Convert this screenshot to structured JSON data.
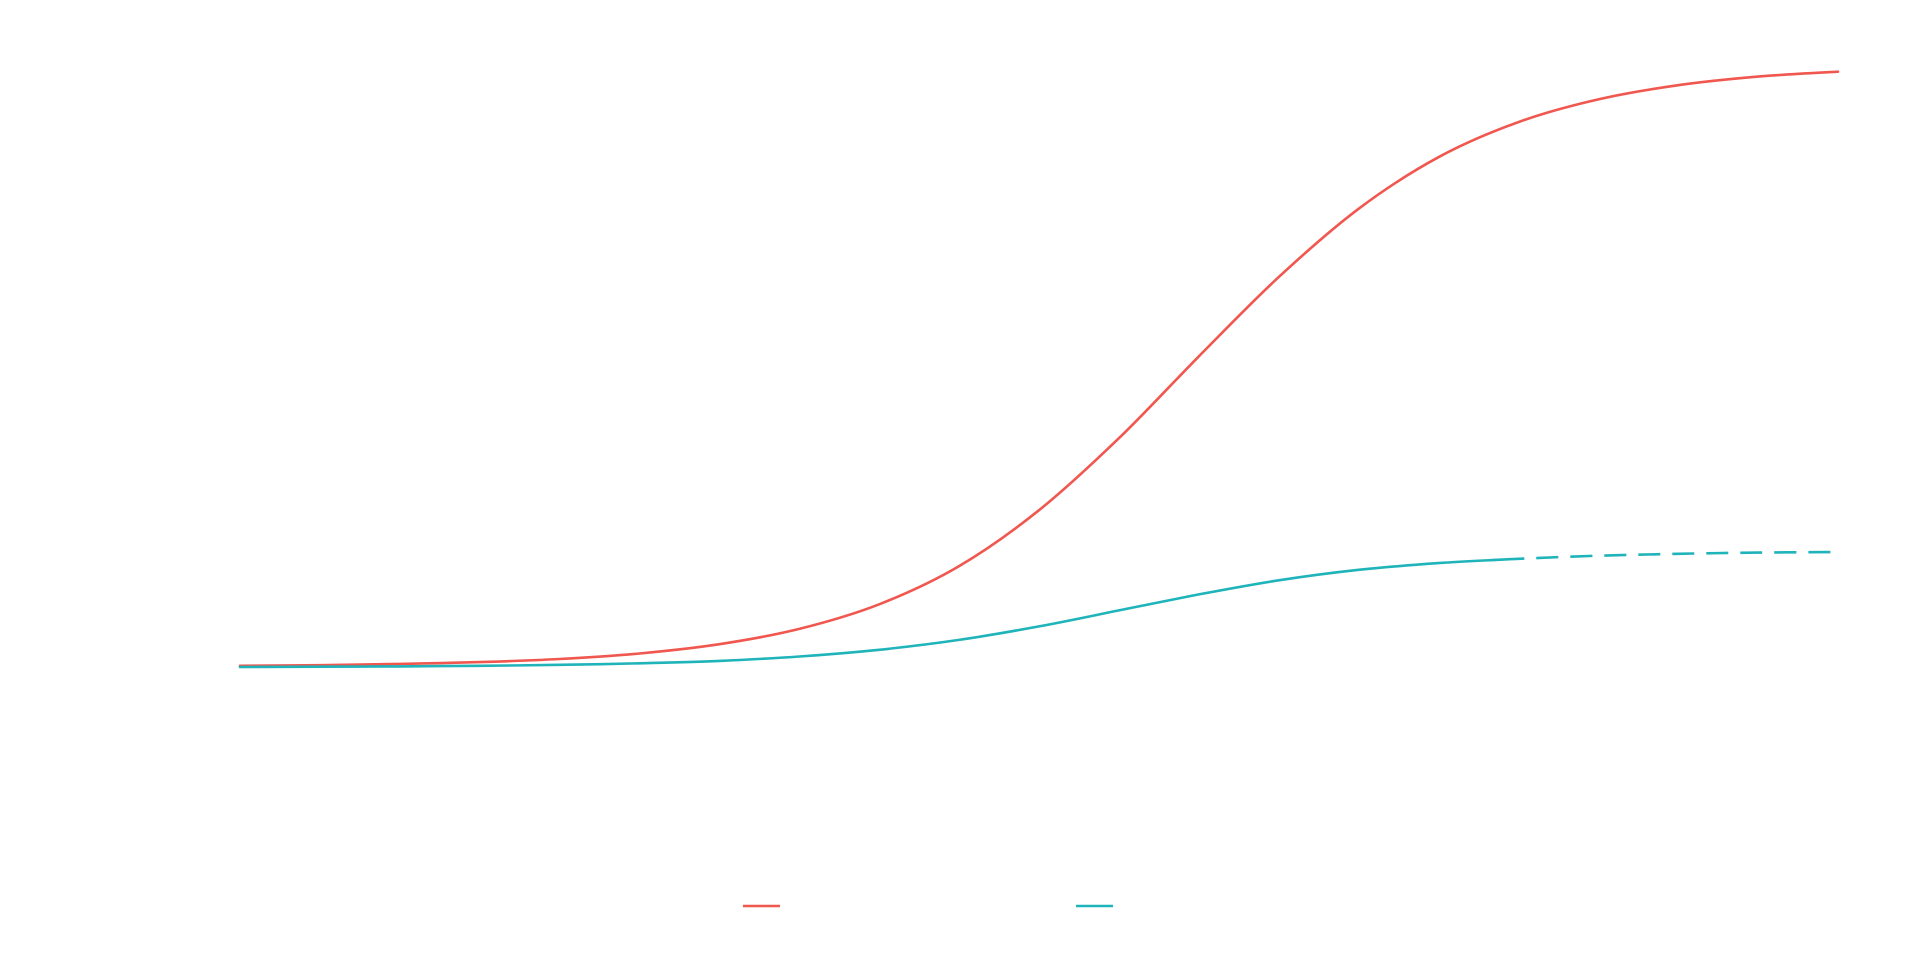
{
  "chart_data": {
    "type": "line",
    "title": "",
    "xlabel": "",
    "ylabel": "",
    "xlim": [
      0,
      100
    ],
    "ylim": [
      0,
      100
    ],
    "grid": false,
    "legend_position": "bottom",
    "series": [
      {
        "color": "#F0574F",
        "x": [
          0,
          5,
          10,
          15,
          20,
          25,
          30,
          35,
          40,
          45,
          50,
          55,
          60,
          65,
          70,
          75,
          80,
          85,
          90,
          95,
          100
        ],
        "values": [
          0.2,
          0.3,
          0.5,
          0.8,
          1.3,
          2.2,
          3.7,
          6.2,
          10.2,
          16.4,
          25.5,
          37.2,
          50.5,
          63.4,
          74.5,
          82.9,
          88.6,
          92.3,
          94.6,
          96.0,
          96.8
        ],
        "projected_from": null
      },
      {
        "color": "#1FB3BA",
        "x": [
          0,
          5,
          10,
          15,
          20,
          25,
          30,
          35,
          40,
          45,
          50,
          55,
          60,
          65,
          70,
          75,
          80,
          85,
          90,
          95,
          100
        ],
        "values": [
          0.0,
          0.05,
          0.1,
          0.2,
          0.35,
          0.6,
          1.0,
          1.7,
          2.8,
          4.4,
          6.6,
          9.2,
          11.8,
          14.1,
          15.8,
          16.9,
          17.6,
          18.1,
          18.4,
          18.6,
          18.7
        ],
        "projected_from": 79
      }
    ]
  }
}
